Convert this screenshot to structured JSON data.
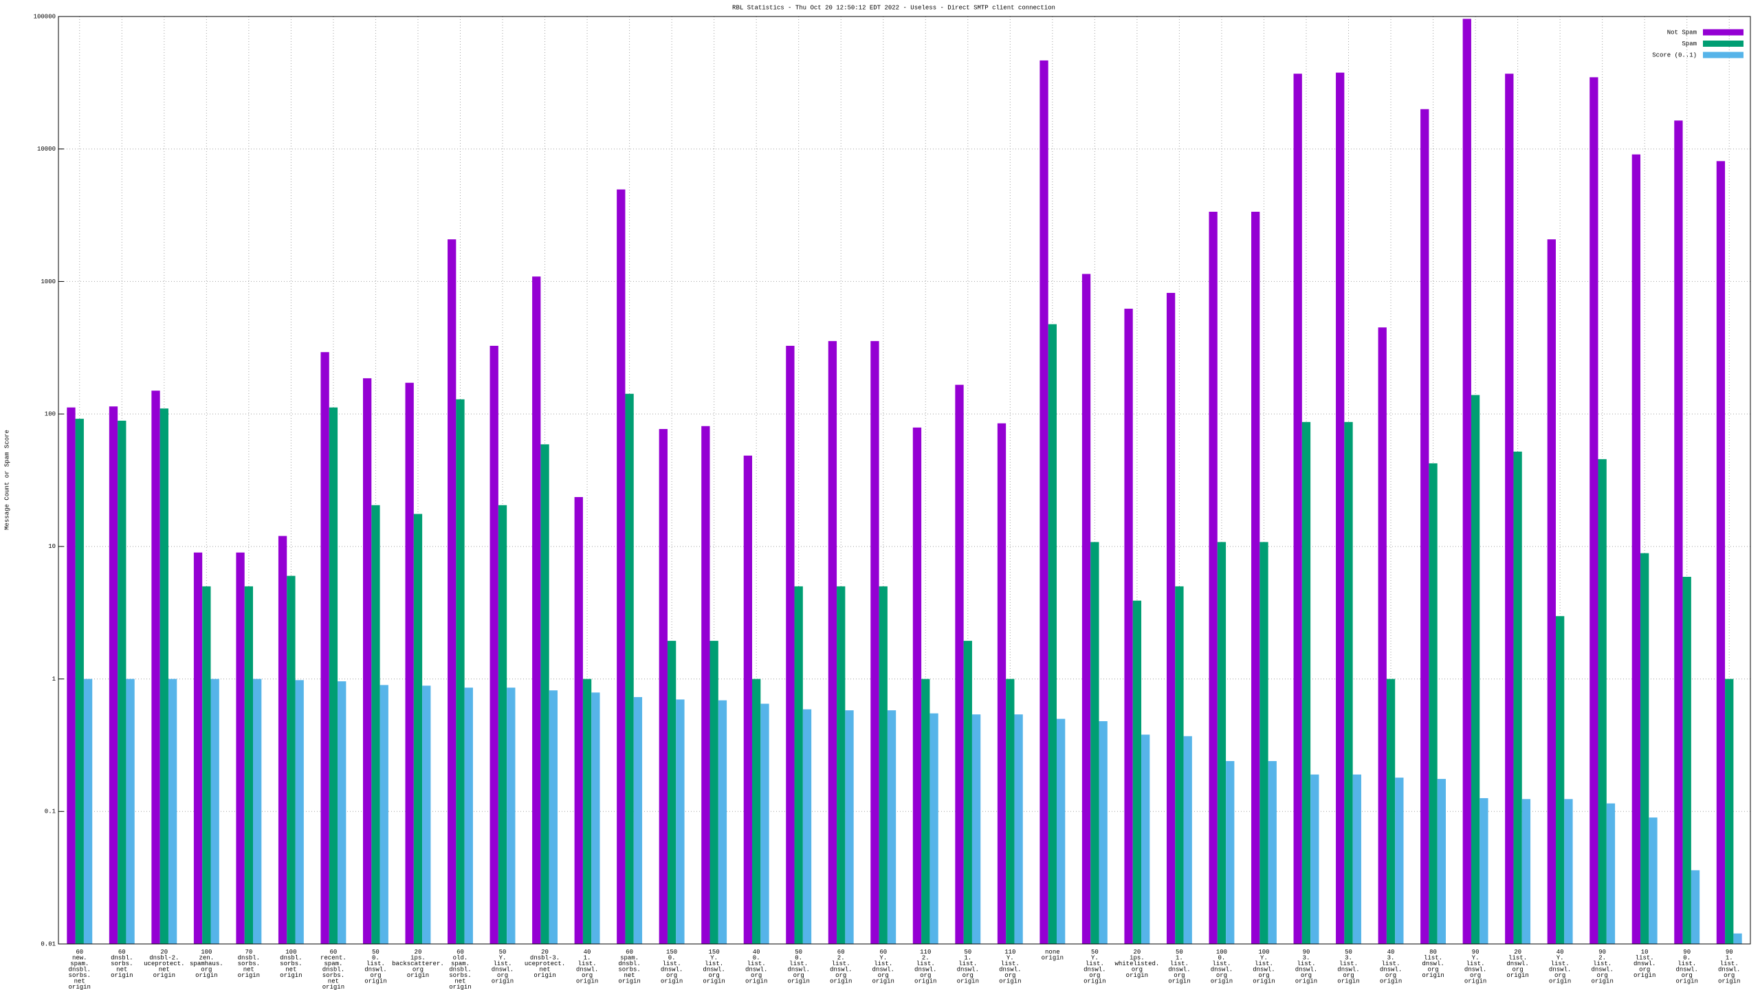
{
  "chart_data": {
    "type": "bar",
    "title": "RBL Statistics - Thu Oct 20 12:50:12 EDT 2022 - Useless - Direct SMTP client connection",
    "ylabel": "Message Count or Spam Score",
    "log_y": true,
    "grid": true,
    "legend": "top-right",
    "ylim": [
      0.01,
      100000
    ],
    "yticks": [
      0.01,
      0.1,
      1,
      10,
      100,
      1000,
      10000,
      100000
    ],
    "categories": [
      [
        "60",
        "new.",
        "spam.",
        "dnsbl.",
        "sorbs.",
        "net",
        "origin"
      ],
      [
        "60",
        "dnsbl.",
        "sorbs.",
        "net",
        "origin"
      ],
      [
        "20",
        "dnsbl-2.",
        "uceprotect.",
        "net",
        "origin"
      ],
      [
        "100",
        "zen.",
        "spamhaus.",
        "org",
        "origin"
      ],
      [
        "70",
        "dnsbl.",
        "sorbs.",
        "net",
        "origin"
      ],
      [
        "100",
        "dnsbl.",
        "sorbs.",
        "net",
        "origin"
      ],
      [
        "60",
        "recent.",
        "spam.",
        "dnsbl.",
        "sorbs.",
        "net",
        "origin"
      ],
      [
        "50",
        "0.",
        "list.",
        "dnswl.",
        "org",
        "origin"
      ],
      [
        "20",
        "ips.",
        "backscatterer.",
        "org",
        "origin"
      ],
      [
        "60",
        "old.",
        "spam.",
        "dnsbl.",
        "sorbs.",
        "net",
        "origin"
      ],
      [
        "50",
        "Y.",
        "list.",
        "dnswl.",
        "org",
        "origin"
      ],
      [
        "20",
        "dnsbl-3.",
        "uceprotect.",
        "net",
        "origin"
      ],
      [
        "40",
        "1.",
        "list.",
        "dnswl.",
        "org",
        "origin"
      ],
      [
        "60",
        "spam.",
        "dnsbl.",
        "sorbs.",
        "net",
        "origin"
      ],
      [
        "150",
        "0.",
        "list.",
        "dnswl.",
        "org",
        "origin"
      ],
      [
        "150",
        "Y.",
        "list.",
        "dnswl.",
        "org",
        "origin"
      ],
      [
        "40",
        "0.",
        "list.",
        "dnswl.",
        "org",
        "origin"
      ],
      [
        "50",
        "0.",
        "list.",
        "dnswl.",
        "org",
        "origin"
      ],
      [
        "60",
        "2.",
        "list.",
        "dnswl.",
        "org",
        "origin"
      ],
      [
        "60",
        "Y.",
        "list.",
        "dnswl.",
        "org",
        "origin"
      ],
      [
        "110",
        "2.",
        "list.",
        "dnswl.",
        "org",
        "origin"
      ],
      [
        "50",
        "1.",
        "list.",
        "dnswl.",
        "org",
        "origin"
      ],
      [
        "110",
        "Y.",
        "list.",
        "dnswl.",
        "org",
        "origin"
      ],
      [
        "none",
        "origin"
      ],
      [
        "50",
        "Y.",
        "list.",
        "dnswl.",
        "org",
        "origin"
      ],
      [
        "20",
        "ips.",
        "whitelisted.",
        "org",
        "origin"
      ],
      [
        "50",
        "1.",
        "list.",
        "dnswl.",
        "org",
        "origin"
      ],
      [
        "100",
        "0.",
        "list.",
        "dnswl.",
        "org",
        "origin"
      ],
      [
        "100",
        "Y.",
        "list.",
        "dnswl.",
        "org",
        "origin"
      ],
      [
        "90",
        "3.",
        "list.",
        "dnswl.",
        "org",
        "origin"
      ],
      [
        "50",
        "3.",
        "list.",
        "dnswl.",
        "org",
        "origin"
      ],
      [
        "40",
        "3.",
        "list.",
        "dnswl.",
        "org",
        "origin"
      ],
      [
        "80",
        "list.",
        "dnswl.",
        "org",
        "origin"
      ],
      [
        "90",
        "Y.",
        "list.",
        "dnswl.",
        "org",
        "origin"
      ],
      [
        "20",
        "list.",
        "dnswl.",
        "org",
        "origin"
      ],
      [
        "40",
        "Y.",
        "list.",
        "dnswl.",
        "org",
        "origin"
      ],
      [
        "90",
        "2.",
        "list.",
        "dnswl.",
        "org",
        "origin"
      ],
      [
        "10",
        "list.",
        "dnswl.",
        "org",
        "origin"
      ],
      [
        "90",
        "0.",
        "list.",
        "dnswl.",
        "org",
        "origin"
      ],
      [
        "90",
        "1.",
        "list.",
        "dnswl.",
        "org",
        "origin"
      ]
    ],
    "series": [
      {
        "name": "Not Spam",
        "color": "#9400d3",
        "values": [
          112,
          114,
          150,
          9,
          9,
          12,
          293,
          186,
          172,
          2080,
          327,
          1090,
          23.6,
          4950,
          77,
          81,
          48.5,
          327,
          355,
          355,
          79,
          166,
          85,
          46600,
          1140,
          623,
          820,
          3360,
          3360,
          37000,
          37700,
          450,
          19990,
          96000,
          37000,
          2080,
          34800,
          9100,
          16400,
          8100
        ]
      },
      {
        "name": "Spam",
        "color": "#009e73",
        "values": [
          92,
          89,
          110,
          5,
          5,
          6,
          112,
          20.5,
          17.6,
          129,
          20.5,
          59,
          1,
          142,
          1.94,
          1.94,
          1,
          5,
          5,
          5,
          1,
          1.94,
          1,
          476,
          10.8,
          3.9,
          5,
          10.8,
          10.8,
          87,
          87,
          1,
          42.4,
          139,
          52,
          2.98,
          45.6,
          8.9,
          5.9,
          1
        ]
      },
      {
        "name": "Score (0..1)",
        "color": "#56b4e9",
        "values": [
          1,
          1,
          1,
          1,
          1,
          0.98,
          0.96,
          0.9,
          0.89,
          0.86,
          0.86,
          0.82,
          0.79,
          0.73,
          0.7,
          0.69,
          0.65,
          0.59,
          0.58,
          0.58,
          0.55,
          0.54,
          0.54,
          0.5,
          0.48,
          0.38,
          0.37,
          0.24,
          0.24,
          0.19,
          0.19,
          0.18,
          0.176,
          0.126,
          0.124,
          0.124,
          0.115,
          0.09,
          0.036,
          0.012
        ]
      }
    ]
  }
}
